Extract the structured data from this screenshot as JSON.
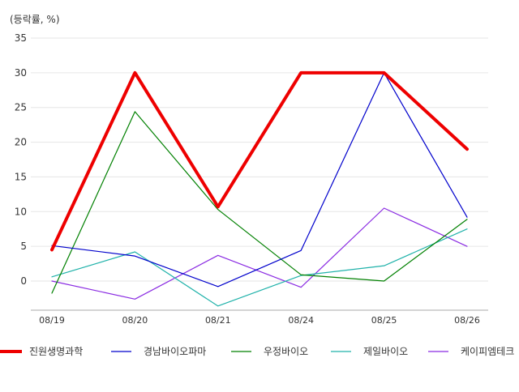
{
  "chart_data": {
    "type": "line",
    "title": "",
    "ylabel": "(등락률, %)",
    "xlabel": "",
    "categories": [
      "08/19",
      "08/20",
      "08/21",
      "08/24",
      "08/25",
      "08/26"
    ],
    "ylim": [
      -4.2,
      35
    ],
    "yticks": [
      0,
      5,
      10,
      15,
      20,
      25,
      30,
      35
    ],
    "grid": true,
    "legend_position": "bottom",
    "series": [
      {
        "name": "진원생명과학",
        "color": "#ee0000",
        "width": 4,
        "values": [
          4.5,
          30,
          10.7,
          30,
          30,
          19.0
        ]
      },
      {
        "name": "경남바이오파마",
        "color": "#0000cc",
        "width": 1.2,
        "values": [
          5.1,
          3.6,
          -0.8,
          4.4,
          30,
          9.2
        ]
      },
      {
        "name": "우정바이오",
        "color": "#008000",
        "width": 1.2,
        "values": [
          -1.75,
          24.4,
          10.3,
          0.9,
          0,
          8.9
        ]
      },
      {
        "name": "제일바이오",
        "color": "#20b2aa",
        "width": 1.2,
        "values": [
          0.6,
          4.2,
          -3.6,
          0.8,
          2.2,
          7.5
        ]
      },
      {
        "name": "케이피엠테크",
        "color": "#8a2be2",
        "width": 1.2,
        "values": [
          0,
          -2.6,
          3.7,
          -0.9,
          10.5,
          5.0
        ]
      }
    ]
  }
}
